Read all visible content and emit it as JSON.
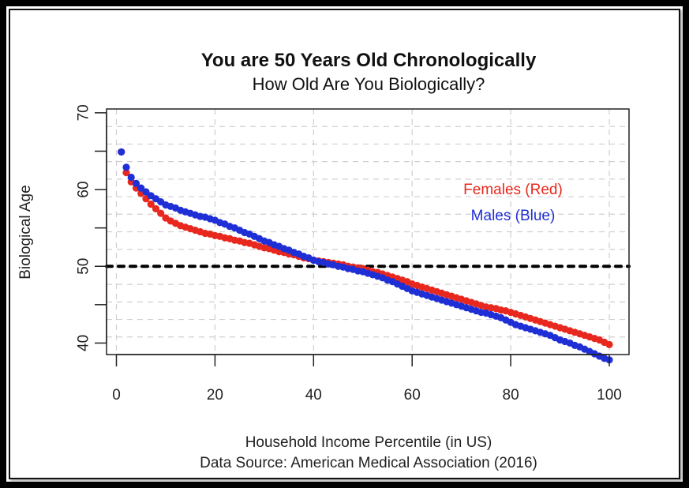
{
  "chart_data": {
    "type": "scatter",
    "title": "You are 50 Years Old Chronologically",
    "subtitle": "How Old Are You Biologically?",
    "xlabel": "Household Income Percentile (in US)",
    "caption": "Data Source: American Medical Association (2016)",
    "ylabel": "Biological Age",
    "xlim": [
      -2,
      104
    ],
    "ylim": [
      38.5,
      70.5
    ],
    "x_ticks": [
      0,
      20,
      40,
      60,
      80,
      100
    ],
    "y_ticks": [
      40,
      45,
      50,
      55,
      60,
      65,
      70
    ],
    "y_tick_labels": [
      40,
      50,
      60,
      70
    ],
    "grid": true,
    "reference_line": {
      "y": 50,
      "style": "dotted",
      "color": "#000000"
    },
    "legend": {
      "placement": "right",
      "entries": [
        {
          "label": "Females (Red)",
          "color": "#e8281e"
        },
        {
          "label": "Males (Blue)",
          "color": "#1f2fd6"
        }
      ]
    },
    "x": [
      1,
      2,
      3,
      4,
      5,
      6,
      7,
      8,
      9,
      10,
      11,
      12,
      13,
      14,
      15,
      16,
      17,
      18,
      19,
      20,
      21,
      22,
      23,
      24,
      25,
      26,
      27,
      28,
      29,
      30,
      31,
      32,
      33,
      34,
      35,
      36,
      37,
      38,
      39,
      40,
      41,
      42,
      43,
      44,
      45,
      46,
      47,
      48,
      49,
      50,
      51,
      52,
      53,
      54,
      55,
      56,
      57,
      58,
      59,
      60,
      61,
      62,
      63,
      64,
      65,
      66,
      67,
      68,
      69,
      70,
      71,
      72,
      73,
      74,
      75,
      76,
      77,
      78,
      79,
      80,
      81,
      82,
      83,
      84,
      85,
      86,
      87,
      88,
      89,
      90,
      91,
      92,
      93,
      94,
      95,
      96,
      97,
      98,
      99,
      100
    ],
    "series": [
      {
        "name": "Females",
        "color": "#e8281e",
        "values": [
          64.9,
          62.2,
          61.0,
          60.2,
          59.5,
          58.8,
          58.1,
          57.5,
          56.9,
          56.3,
          55.9,
          55.6,
          55.3,
          55.1,
          54.9,
          54.7,
          54.5,
          54.3,
          54.2,
          54.0,
          53.9,
          53.7,
          53.6,
          53.4,
          53.3,
          53.1,
          53.0,
          52.8,
          52.6,
          52.4,
          52.3,
          52.1,
          51.9,
          51.8,
          51.6,
          51.5,
          51.3,
          51.1,
          51.0,
          50.8,
          50.7,
          50.6,
          50.5,
          50.4,
          50.3,
          50.2,
          50.0,
          49.9,
          49.8,
          49.7,
          49.5,
          49.3,
          49.2,
          49.0,
          48.8,
          48.6,
          48.4,
          48.2,
          48.0,
          47.7,
          47.5,
          47.3,
          47.1,
          46.9,
          46.7,
          46.5,
          46.3,
          46.1,
          45.9,
          45.7,
          45.5,
          45.3,
          45.1,
          44.9,
          44.7,
          44.6,
          44.5,
          44.3,
          44.2,
          44.0,
          43.8,
          43.6,
          43.4,
          43.2,
          43.0,
          42.8,
          42.6,
          42.4,
          42.2,
          42.0,
          41.8,
          41.6,
          41.4,
          41.2,
          41.0,
          40.8,
          40.6,
          40.4,
          40.1,
          39.8
        ]
      },
      {
        "name": "Males",
        "color": "#1f2fd6",
        "values": [
          64.9,
          62.9,
          61.6,
          60.8,
          60.2,
          59.7,
          59.2,
          58.8,
          58.4,
          58.0,
          57.8,
          57.6,
          57.3,
          57.1,
          56.9,
          56.7,
          56.5,
          56.4,
          56.2,
          56.0,
          55.7,
          55.5,
          55.2,
          55.0,
          54.7,
          54.4,
          54.2,
          53.9,
          53.6,
          53.3,
          53.1,
          52.8,
          52.6,
          52.3,
          52.1,
          51.8,
          51.6,
          51.3,
          51.1,
          50.8,
          50.6,
          50.5,
          50.3,
          50.2,
          50.0,
          49.9,
          49.7,
          49.6,
          49.4,
          49.3,
          49.1,
          48.9,
          48.7,
          48.5,
          48.2,
          48.0,
          47.7,
          47.4,
          47.1,
          46.8,
          46.6,
          46.4,
          46.2,
          46.0,
          45.8,
          45.6,
          45.4,
          45.2,
          45.0,
          44.8,
          44.6,
          44.4,
          44.2,
          44.0,
          43.9,
          43.7,
          43.5,
          43.3,
          43.0,
          42.7,
          42.4,
          42.2,
          42.0,
          41.8,
          41.6,
          41.4,
          41.2,
          41.0,
          40.7,
          40.4,
          40.2,
          40.0,
          39.7,
          39.5,
          39.2,
          38.9,
          38.6,
          38.3,
          38.0,
          37.8
        ]
      }
    ]
  }
}
